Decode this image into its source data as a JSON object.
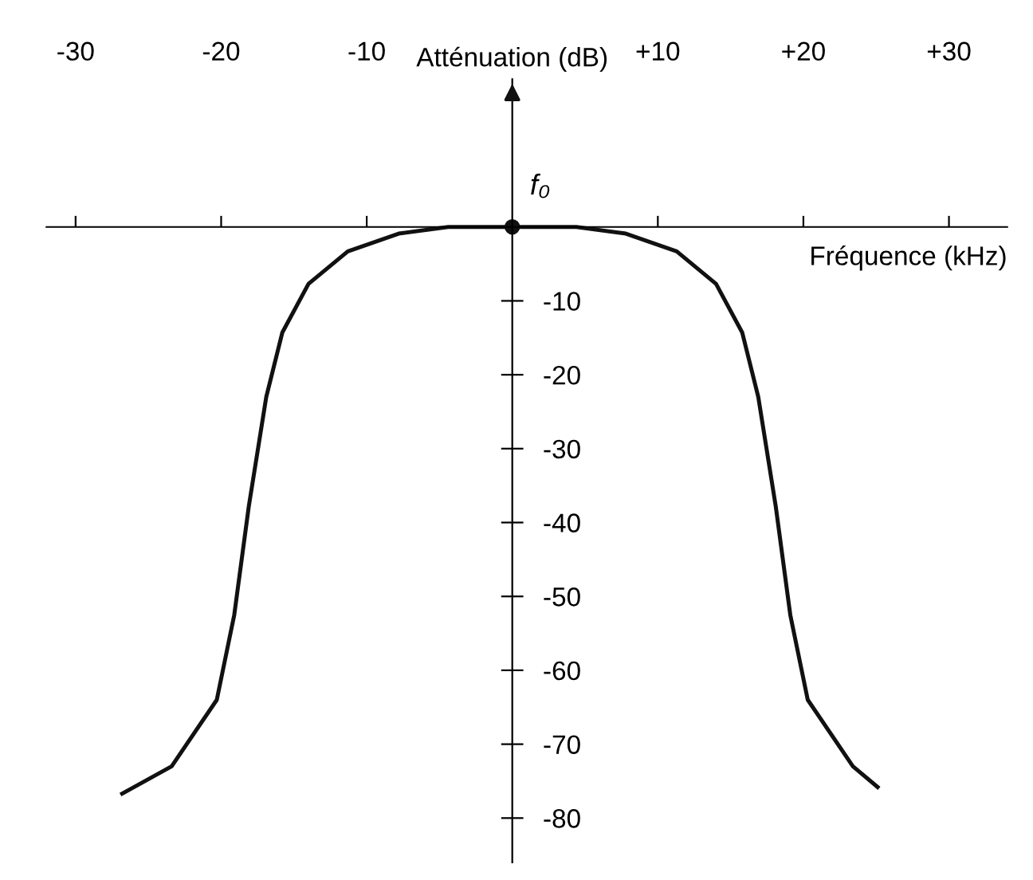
{
  "chart_data": {
    "type": "line",
    "xlabel": "Fréquence (kHz)",
    "ylabel": "Atténuation (dB)",
    "x": [
      -26.8,
      -23.4,
      -20.3,
      -19.1,
      -18.1,
      -16.9,
      -15.8,
      -14,
      -11.3,
      -7.8,
      -4.4,
      0,
      4.4,
      7.8,
      11.3,
      14,
      15.8,
      16.9,
      18.1,
      19.1,
      20.3,
      23.4,
      25.1
    ],
    "series": [
      {
        "color": "#111111",
        "values": [
          -76.7,
          -73,
          -64,
          -52.5,
          -37.8,
          -23,
          -14.3,
          -7.7,
          -3.3,
          -0.9,
          0,
          0,
          0,
          -0.9,
          -3.3,
          -7.7,
          -14.3,
          -23,
          -37.8,
          -52.5,
          -64,
          -73,
          -75.8
        ]
      }
    ],
    "xlim": [
      -32,
      34
    ],
    "ylim": [
      -86,
      20
    ],
    "xticks": [
      -30,
      -20,
      -10,
      {
        "value": 10,
        "label": "+10"
      },
      {
        "value": 20,
        "label": "+20"
      },
      {
        "value": 30,
        "label": "+30"
      }
    ],
    "yticks": [
      -10,
      -20,
      -30,
      -40,
      -50,
      -60,
      -70,
      -80
    ],
    "annotations": [
      {
        "text": "f₀",
        "x": 0,
        "y": 0
      }
    ],
    "grid": false,
    "legend": false,
    "marker": "none",
    "line_style": "solid"
  }
}
